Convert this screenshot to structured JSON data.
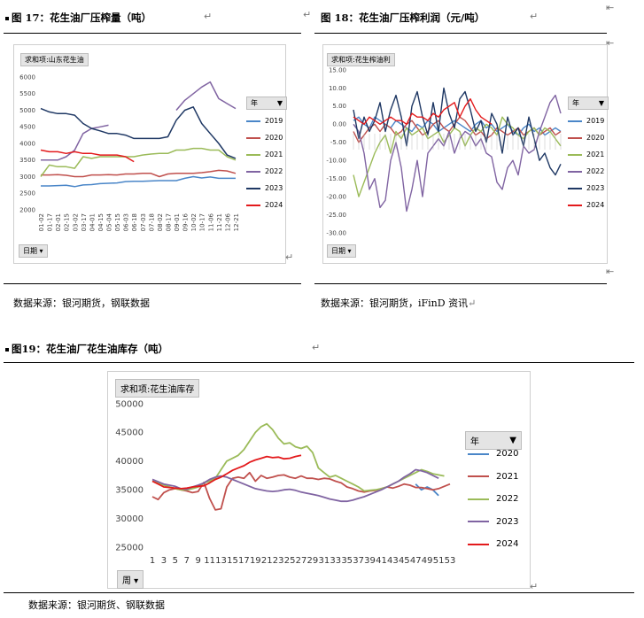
{
  "figures": {
    "fig17": {
      "title": "图 17：花生油厂压榨量（吨）",
      "source": "数据来源：银河期货，钢联数据"
    },
    "fig18": {
      "title": "图 18：花生油厂压榨利润（元/吨）",
      "source": "数据来源：银河期货，iFinD 资讯"
    },
    "fig19": {
      "title": "图19：花生油厂花生油库存（吨）",
      "source": "数据来源：银河期货、钢联数据"
    }
  },
  "marks": {
    "return_glyph": "↵",
    "anchor_glyph": "⇤"
  },
  "chart_data": [
    {
      "type": "line",
      "title": "求和项:山东花生油",
      "legend_title": "年",
      "field_button": "日期",
      "xlabel": "",
      "ylabel": "",
      "ylim": [
        2000,
        6000
      ],
      "yticks": [
        2000,
        2500,
        3000,
        3500,
        4000,
        4500,
        5000,
        5500,
        6000
      ],
      "x_ticks": [
        "01-02",
        "01-17",
        "02-01",
        "02-15",
        "03-02",
        "03-17",
        "04-01",
        "04-15",
        "05-04",
        "05-15",
        "06-03",
        "06-18",
        "07-03",
        "07-18",
        "08-02",
        "08-17",
        "09-01",
        "09-16",
        "10-02",
        "10-17",
        "11-06",
        "11-21",
        "12-06",
        "12-21"
      ],
      "n": 24,
      "legend_position": "right",
      "series": [
        {
          "name": "2019",
          "color": "#4a86c8",
          "values": [
            2720,
            2720,
            2730,
            2740,
            2700,
            2750,
            2760,
            2790,
            2800,
            2810,
            2850,
            2860,
            2860,
            2870,
            2880,
            2880,
            2880,
            2950,
            3000,
            2960,
            2990,
            2950,
            2950,
            2950
          ]
        },
        {
          "name": "2020",
          "color": "#c0504d",
          "values": [
            3050,
            3050,
            3060,
            3040,
            3000,
            3000,
            3050,
            3050,
            3060,
            3050,
            3080,
            3080,
            3100,
            3100,
            3000,
            3080,
            3100,
            3100,
            3100,
            3120,
            3150,
            3190,
            3170,
            3100
          ]
        },
        {
          "name": "2021",
          "color": "#9bbb59",
          "values": [
            3000,
            3350,
            3300,
            3300,
            3250,
            3600,
            3550,
            3600,
            3600,
            3600,
            3600,
            3600,
            3650,
            3680,
            3700,
            3700,
            3800,
            3800,
            3850,
            3850,
            3800,
            3800,
            3600,
            3500
          ]
        },
        {
          "name": "2022",
          "color": "#8064a2",
          "values": [
            3500,
            3500,
            3500,
            3600,
            3800,
            4300,
            4450,
            4500,
            4550,
            null,
            null,
            null,
            null,
            null,
            null,
            null,
            5000,
            5300,
            5500,
            5700,
            5850,
            5350,
            5200,
            5050
          ]
        },
        {
          "name": "2023",
          "color": "#1f3864",
          "values": [
            5050,
            4950,
            4900,
            4900,
            4850,
            4600,
            4450,
            4380,
            4300,
            4300,
            4250,
            4150,
            4150,
            4150,
            4150,
            4200,
            4700,
            5000,
            5100,
            4600,
            4300,
            4000,
            3650,
            3550
          ]
        },
        {
          "name": "2024",
          "color": "#e31a1c",
          "values": [
            3800,
            3750,
            3750,
            3700,
            3750,
            3700,
            3700,
            3650,
            3650,
            3650,
            3600,
            3450,
            null,
            null,
            null,
            null,
            null,
            null,
            null,
            null,
            null,
            null,
            null,
            null
          ]
        }
      ]
    },
    {
      "type": "line",
      "title": "求和项:花生榨油利",
      "legend_title": "年",
      "field_button": "日期",
      "xlabel": "",
      "ylabel": "",
      "ylim": [
        -30,
        15
      ],
      "yticks": [
        -30,
        -25,
        -20,
        -15,
        -10,
        -5,
        0,
        5,
        10,
        15
      ],
      "n": 40,
      "legend_position": "right",
      "series": [
        {
          "name": "2019",
          "color": "#4a86c8",
          "values": [
            1,
            2,
            0,
            -1,
            2,
            1,
            0,
            -1,
            1,
            0,
            -1,
            -2,
            0,
            -1,
            1,
            0,
            -2,
            -1,
            0,
            1,
            0,
            -1,
            -2,
            0,
            1,
            -1,
            0,
            -2,
            -1,
            0,
            -2,
            -3,
            -1,
            0,
            -2,
            -1,
            -3,
            -2,
            -1,
            -2
          ]
        },
        {
          "name": "2020",
          "color": "#c0504d",
          "values": [
            -2,
            -5,
            -3,
            -1,
            0,
            -2,
            0,
            -1,
            -3,
            -2,
            0,
            1,
            -1,
            -3,
            -2,
            0,
            1,
            -1,
            -2,
            0,
            2,
            1,
            -1,
            -3,
            -2,
            -4,
            -3,
            -1,
            -2,
            -3,
            -2,
            -1,
            -3,
            -2,
            -1,
            -3,
            -2,
            -1,
            -3,
            -2
          ]
        },
        {
          "name": "2021",
          "color": "#9bbb59",
          "values": [
            -14,
            -20,
            -16,
            -12,
            -8,
            -5,
            -3,
            -8,
            -2,
            -4,
            -1,
            -3,
            -2,
            -1,
            -4,
            -3,
            -2,
            -5,
            -3,
            -1,
            -2,
            -6,
            -3,
            -1,
            -2,
            0,
            -1,
            -3,
            2,
            0,
            -1,
            -3,
            -4,
            -2,
            -1,
            -3,
            -1,
            -2,
            -4,
            -6
          ]
        },
        {
          "name": "2022",
          "color": "#8064a2",
          "values": [
            0,
            -2,
            -8,
            -18,
            -15,
            -23,
            -21,
            -10,
            -5,
            -12,
            -24,
            -18,
            -10,
            -20,
            -8,
            -6,
            -4,
            -6,
            -2,
            -8,
            -4,
            -2,
            -3,
            -6,
            -4,
            -8,
            -9,
            -16,
            -18,
            -12,
            -10,
            -14,
            -6,
            -8,
            -7,
            -2,
            2,
            6,
            8,
            3
          ]
        },
        {
          "name": "2023",
          "color": "#1f3864",
          "values": [
            4,
            -4,
            2,
            -2,
            1,
            6,
            -2,
            4,
            8,
            2,
            -6,
            5,
            9,
            2,
            -3,
            6,
            -2,
            10,
            3,
            -1,
            7,
            9,
            4,
            -2,
            1,
            -5,
            3,
            0,
            -8,
            2,
            -3,
            -1,
            -6,
            2,
            -4,
            -10,
            -8,
            -12,
            -14,
            -11
          ]
        },
        {
          "name": "2024",
          "color": "#e31a1c",
          "values": [
            2,
            1,
            0,
            2,
            1,
            0,
            1,
            2,
            1,
            1,
            0,
            3,
            2,
            2,
            1,
            3,
            2,
            4,
            5,
            6,
            2,
            5,
            7,
            4,
            2,
            1,
            0,
            null,
            null,
            null,
            null,
            null,
            null,
            null,
            null,
            null,
            null,
            null,
            null,
            null
          ]
        }
      ]
    },
    {
      "type": "line",
      "title": "求和项:花生油库存",
      "legend_title": "年",
      "field_button": "周",
      "xlabel": "",
      "ylabel": "",
      "ylim": [
        25000,
        50000
      ],
      "yticks": [
        25000,
        30000,
        35000,
        40000,
        45000,
        50000
      ],
      "x_ticks": [
        "1",
        "3",
        "5",
        "7",
        "9",
        "11",
        "13",
        "15",
        "17",
        "19",
        "21",
        "23",
        "25",
        "27",
        "29",
        "31",
        "33",
        "35",
        "37",
        "39",
        "41",
        "43",
        "45",
        "47",
        "49",
        "51",
        "53"
      ],
      "n": 53,
      "legend_position": "right",
      "series": [
        {
          "name": "2020",
          "color": "#4a86c8",
          "values": [
            null,
            null,
            null,
            null,
            null,
            null,
            null,
            null,
            null,
            null,
            null,
            null,
            null,
            null,
            null,
            null,
            null,
            null,
            null,
            null,
            null,
            null,
            null,
            null,
            null,
            null,
            null,
            null,
            null,
            null,
            null,
            null,
            null,
            null,
            null,
            null,
            null,
            null,
            null,
            null,
            null,
            null,
            null,
            null,
            null,
            null,
            36000,
            35000,
            35500,
            35000,
            34000,
            null,
            null
          ]
        },
        {
          "name": "2021",
          "color": "#c0504d",
          "values": [
            33800,
            33300,
            34500,
            35000,
            35200,
            35000,
            34800,
            34500,
            34700,
            36300,
            33500,
            31500,
            31700,
            35500,
            37000,
            37200,
            37000,
            38000,
            36500,
            37500,
            37000,
            37200,
            37500,
            37600,
            37200,
            37000,
            37400,
            37000,
            37000,
            36800,
            37000,
            36900,
            36500,
            36200,
            35500,
            35200,
            34800,
            34600,
            34800,
            34900,
            35200,
            35500,
            35300,
            35600,
            36000,
            35800,
            35400,
            35400,
            35200,
            35000,
            35200,
            35600,
            36000
          ]
        },
        {
          "name": "2022",
          "color": "#9bbb59",
          "values": [
            36500,
            36200,
            35800,
            35500,
            35200,
            35000,
            35000,
            35200,
            35500,
            36200,
            36500,
            37000,
            38500,
            40000,
            40500,
            41000,
            42000,
            43500,
            45000,
            46000,
            46500,
            45500,
            44000,
            43000,
            43200,
            42500,
            42200,
            42600,
            41500,
            38800,
            38000,
            37200,
            37500,
            37000,
            36500,
            36000,
            35500,
            34800,
            34900,
            35000,
            35200,
            35500,
            36000,
            36500,
            37000,
            37500,
            38000,
            38500,
            38200,
            37800,
            37600,
            37400,
            null
          ]
        },
        {
          "name": "2023",
          "color": "#8064a2",
          "values": [
            36800,
            36400,
            36000,
            35800,
            35600,
            35200,
            35100,
            35500,
            35800,
            36200,
            36800,
            37200,
            37400,
            37200,
            36800,
            36400,
            36000,
            35600,
            35200,
            35000,
            34800,
            34700,
            34800,
            35000,
            35100,
            34900,
            34600,
            34400,
            34200,
            34000,
            33700,
            33400,
            33200,
            33000,
            33000,
            33200,
            33500,
            33800,
            34200,
            34600,
            35000,
            35500,
            36000,
            36500,
            37200,
            37800,
            38500,
            38300,
            38000,
            37500,
            37000,
            null,
            null
          ]
        },
        {
          "name": "2024",
          "color": "#e31a1c",
          "values": [
            36500,
            36000,
            35500,
            35400,
            35300,
            35200,
            35300,
            35500,
            35600,
            35700,
            36200,
            36800,
            37200,
            37800,
            38400,
            38800,
            39200,
            39800,
            40200,
            40500,
            40800,
            40600,
            40700,
            40400,
            40500,
            40800,
            41000,
            null,
            null,
            null,
            null,
            null,
            null,
            null,
            null,
            null,
            null,
            null,
            null,
            null,
            null,
            null,
            null,
            null,
            null,
            null,
            null,
            null,
            null,
            null,
            null,
            null,
            null
          ]
        }
      ]
    }
  ]
}
